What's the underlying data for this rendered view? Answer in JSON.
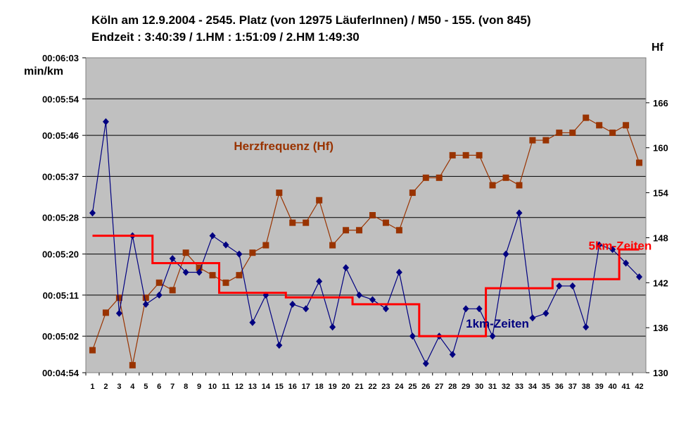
{
  "chart_data": {
    "type": "line",
    "title_line1": "Köln am 12.9.2004 - 2545. Platz (von 12975 LäuferInnen) / M50 - 155. (von 845)",
    "title_line2": "Endzeit : 3:40:39  / 1.HM : 1:51:09  / 2.HM  1:49:30",
    "ylabel_left": "min/km",
    "ylabel_right": "Hf",
    "grid": true,
    "plot_background": "#c0c0c0",
    "categories": [
      1,
      2,
      3,
      4,
      5,
      6,
      7,
      8,
      9,
      10,
      11,
      12,
      13,
      14,
      15,
      16,
      17,
      18,
      19,
      20,
      21,
      22,
      23,
      24,
      25,
      26,
      27,
      28,
      29,
      30,
      31,
      32,
      33,
      34,
      35,
      36,
      37,
      38,
      39,
      40,
      41,
      42
    ],
    "y_left": {
      "min_seconds": 294,
      "max_seconds": 363,
      "tick_seconds": [
        294,
        302,
        311,
        320,
        328,
        337,
        346,
        354,
        363
      ],
      "tick_labels": [
        "00:04:54",
        "00:05:02",
        "00:05:11",
        "00:05:20",
        "00:05:28",
        "00:05:37",
        "00:05:46",
        "00:05:54",
        "00:06:03"
      ]
    },
    "y_right": {
      "min": 130,
      "max": 172,
      "ticks": [
        130,
        136,
        142,
        148,
        154,
        160,
        166
      ]
    },
    "series": [
      {
        "name": "Herzfrequenz (Hf)",
        "axis": "right",
        "color": "#993300",
        "marker": "square",
        "values": [
          133,
          138,
          140,
          131,
          140,
          142,
          141,
          146,
          144,
          143,
          142,
          143,
          146,
          147,
          154,
          150,
          150,
          153,
          147,
          149,
          149,
          151,
          150,
          149,
          154,
          156,
          156,
          159,
          159,
          159,
          155,
          156,
          155,
          161,
          161,
          162,
          162,
          164,
          163,
          162,
          163,
          158
        ]
      },
      {
        "name": "1km-Zeiten",
        "axis": "left",
        "color": "#000080",
        "marker": "diamond",
        "values": [
          329,
          349,
          307,
          324,
          309,
          311,
          319,
          316,
          316,
          324,
          322,
          320,
          305,
          311,
          300,
          309,
          308,
          314,
          304,
          317,
          311,
          310,
          308,
          316,
          302,
          296,
          302,
          298,
          308,
          308,
          302,
          320,
          329,
          306,
          307,
          313,
          313,
          304,
          322,
          321,
          318,
          315
        ]
      },
      {
        "name": "5km-Zeiten",
        "axis": "left",
        "color": "#ff0000",
        "marker": "none",
        "values": [
          324,
          324,
          324,
          324,
          324,
          318,
          318,
          318,
          318,
          318,
          311.5,
          311.5,
          311.5,
          311.5,
          311.5,
          310.5,
          310.5,
          310.5,
          310.5,
          310.5,
          309,
          309,
          309,
          309,
          309,
          302,
          302,
          302,
          302,
          302,
          312.5,
          312.5,
          312.5,
          312.5,
          312.5,
          314.5,
          314.5,
          314.5,
          314.5,
          314.5,
          321,
          321
        ]
      }
    ],
    "annotations": [
      {
        "text": "Herzfrequenz (Hf)",
        "color": "#993300",
        "x": 11.6,
        "y_seconds": 342.8
      },
      {
        "text": "5km-Zeiten",
        "color": "#ff0000",
        "x": 38.2,
        "y_seconds": 320.9
      },
      {
        "text": "1km-Zeiten",
        "color": "#000080",
        "x": 29.0,
        "y_seconds": 303.9
      }
    ]
  }
}
